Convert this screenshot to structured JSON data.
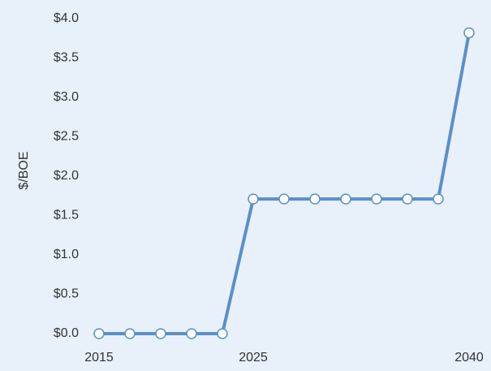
{
  "chart_data": {
    "type": "line",
    "y_label": "$/BOE",
    "categories": [
      "2015",
      null,
      null,
      null,
      null,
      "2025",
      null,
      null,
      null,
      null,
      null,
      null,
      "2040"
    ],
    "series": [
      {
        "name": null,
        "color": "#5b8fca",
        "values": [
          0,
          0,
          0,
          0,
          0,
          1.71,
          1.71,
          1.71,
          1.71,
          1.71,
          1.71,
          1.71,
          3.82
        ]
      }
    ],
    "ylim": [
      0,
      4
    ],
    "yticks": [
      {
        "value": 0,
        "label": "$0.0"
      },
      {
        "value": 0.5,
        "label": "$0.5"
      },
      {
        "value": 1,
        "label": "$1.0"
      },
      {
        "value": 1.5,
        "label": "$1.5"
      },
      {
        "value": 2,
        "label": "$2.0"
      },
      {
        "value": 2.5,
        "label": "$2.5"
      },
      {
        "value": 3,
        "label": "$3.0"
      },
      {
        "value": 3.5,
        "label": "$3.5"
      },
      {
        "value": 4,
        "label": "$4.0"
      }
    ],
    "grid": false
  }
}
